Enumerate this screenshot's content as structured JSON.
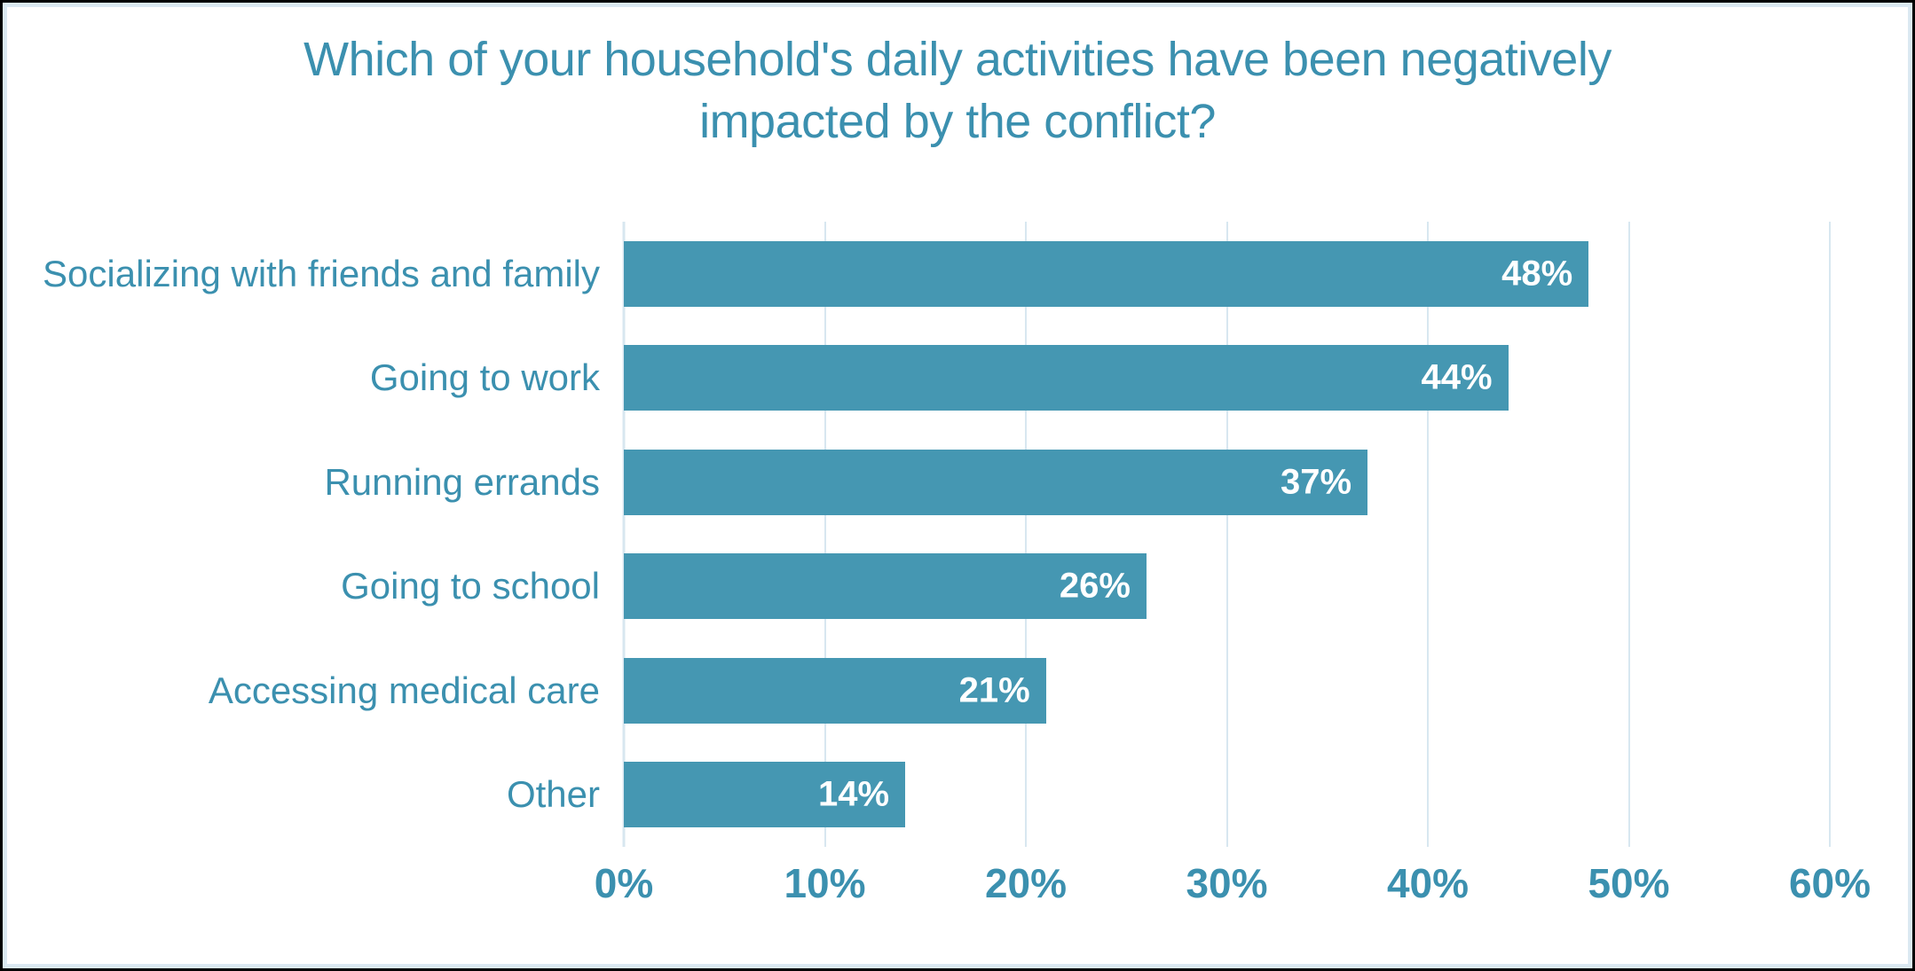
{
  "colors": {
    "bar": "#4597b2",
    "text": "#3b90af",
    "gridline": "#d8e7f0",
    "inner_border": "#dbe9f2",
    "outer_border": "#000000",
    "value_label": "#ffffff",
    "background": "#ffffff"
  },
  "title": {
    "lines": [
      "Which of your household's daily activities have been negatively",
      "impacted by the conflict?"
    ]
  },
  "chart_data": {
    "type": "bar",
    "orientation": "horizontal",
    "title": "Which of your household's daily activities have been negatively impacted by the conflict?",
    "categories": [
      "Socializing with friends and family",
      "Going to work",
      "Running errands",
      "Going to school",
      "Accessing medical care",
      "Other"
    ],
    "values": [
      48,
      44,
      37,
      26,
      21,
      14
    ],
    "value_labels": [
      "48%",
      "44%",
      "37%",
      "26%",
      "21%",
      "14%"
    ],
    "xlabel": "",
    "ylabel": "",
    "xlim": [
      0,
      60
    ],
    "x_ticks": [
      "0%",
      "10%",
      "20%",
      "30%",
      "40%",
      "50%",
      "60%"
    ],
    "grid": "vertical-only",
    "legend": "none",
    "bar_label_position": "inside-end"
  }
}
